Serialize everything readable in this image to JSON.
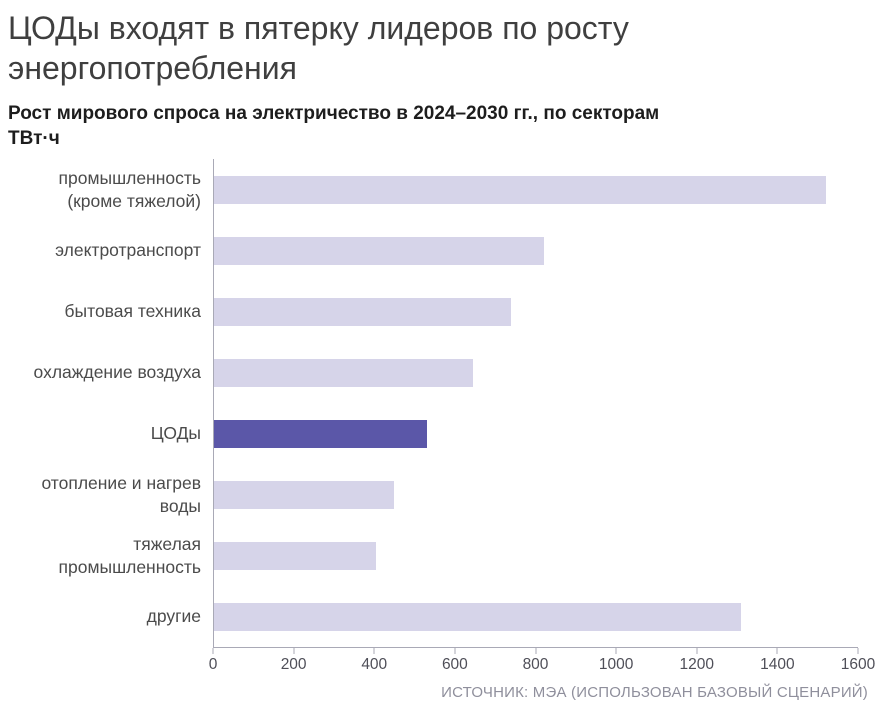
{
  "title": "ЦОДы входят в пятерку лидеров по росту энергопотребления",
  "subtitle": "Рост мирового спроса на электричество в 2024–2030 гг., по секторам",
  "unit": "ТВт·ч",
  "source": "ИСТОЧНИК: МЭА (ИСПОЛЬЗОВАН БАЗОВЫЙ СЦЕНАРИЙ)",
  "colors": {
    "bar": "#d6d4e9",
    "highlight": "#5b57a8",
    "axis": "#a9a9b6",
    "label": "#4b4b4b",
    "tick": "#4f4f58"
  },
  "chart_data": {
    "type": "bar",
    "orientation": "horizontal",
    "title": "Рост мирового спроса на электричество в 2024–2030 гг., по секторам",
    "xlabel": "ТВт·ч",
    "ylabel": "",
    "categories": [
      "промышленность (кроме тяжелой)",
      "электротранспорт",
      "бытовая техника",
      "охлаждение воздуха",
      "ЦОДы",
      "отопление и нагрев воды",
      "тяжелая промышленность",
      "другие"
    ],
    "values": [
      1520,
      820,
      740,
      645,
      530,
      450,
      405,
      1310
    ],
    "highlight_index": 4,
    "highlight_category": "ЦОДы",
    "xlim": [
      0,
      1600
    ],
    "xticks": [
      0,
      200,
      400,
      600,
      800,
      1000,
      1200,
      1400,
      1600
    ],
    "grid": false,
    "legend": false
  }
}
